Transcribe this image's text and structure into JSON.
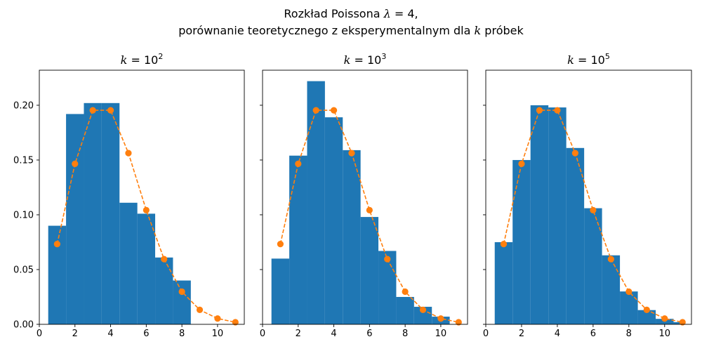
{
  "title": {
    "line1_text": "Rozkład Poissona ",
    "line1_symbol": "λ",
    "line1_rest": " = 4,",
    "line2_pre": "porównanie teoretycznego z eksperymentalnym dla ",
    "line2_symbol": "k",
    "line2_post": " próbek"
  },
  "colors": {
    "bars": "#1f77b4",
    "theoretical_line": "#ff7f0e",
    "axes": "#000000",
    "background": "#ffffff"
  },
  "chart_data": [
    {
      "type": "bar",
      "title": {
        "var": "k",
        "eq": " = 10",
        "exp": "2"
      },
      "xlim": [
        0,
        11.5
      ],
      "ylim": [
        0,
        0.232
      ],
      "xticks": [
        0,
        2,
        4,
        6,
        8,
        10
      ],
      "yticks": [
        0.0,
        0.05,
        0.1,
        0.15,
        0.2
      ],
      "ytick_labels": [
        "0.00",
        "0.05",
        "0.10",
        "0.15",
        "0.20"
      ],
      "show_ytick_labels": true,
      "bins": [
        [
          0.5,
          1.5
        ],
        [
          1.5,
          2.5
        ],
        [
          2.5,
          3.5
        ],
        [
          3.5,
          4.5
        ],
        [
          4.5,
          5.5
        ],
        [
          5.5,
          6.5
        ],
        [
          6.5,
          7.5
        ],
        [
          7.5,
          8.5
        ]
      ],
      "values": [
        0.09,
        0.192,
        0.202,
        0.202,
        0.111,
        0.101,
        0.061,
        0.04
      ],
      "theoretical": {
        "x": [
          1,
          2,
          3,
          4,
          5,
          6,
          7,
          8,
          9,
          10,
          11
        ],
        "y": [
          0.0733,
          0.1465,
          0.1954,
          0.1954,
          0.1563,
          0.1042,
          0.0595,
          0.0298,
          0.0132,
          0.0053,
          0.0019
        ]
      }
    },
    {
      "type": "bar",
      "title": {
        "var": "k",
        "eq": " = 10",
        "exp": "3"
      },
      "xlim": [
        0,
        11.5
      ],
      "ylim": [
        0,
        0.232
      ],
      "xticks": [
        0,
        2,
        4,
        6,
        8,
        10
      ],
      "yticks": [
        0.0,
        0.05,
        0.1,
        0.15,
        0.2
      ],
      "ytick_labels": [
        "0.00",
        "0.05",
        "0.10",
        "0.15",
        "0.20"
      ],
      "show_ytick_labels": false,
      "bins": [
        [
          0.5,
          1.5
        ],
        [
          1.5,
          2.5
        ],
        [
          2.5,
          3.5
        ],
        [
          3.5,
          4.5
        ],
        [
          4.5,
          5.5
        ],
        [
          5.5,
          6.5
        ],
        [
          6.5,
          7.5
        ],
        [
          7.5,
          8.5
        ],
        [
          8.5,
          9.5
        ],
        [
          9.5,
          10.5
        ]
      ],
      "values": [
        0.06,
        0.154,
        0.222,
        0.189,
        0.159,
        0.098,
        0.067,
        0.025,
        0.016,
        0.007
      ],
      "theoretical": {
        "x": [
          1,
          2,
          3,
          4,
          5,
          6,
          7,
          8,
          9,
          10,
          11
        ],
        "y": [
          0.0733,
          0.1465,
          0.1954,
          0.1954,
          0.1563,
          0.1042,
          0.0595,
          0.0298,
          0.0132,
          0.0053,
          0.0019
        ]
      }
    },
    {
      "type": "bar",
      "title": {
        "var": "k",
        "eq": " = 10",
        "exp": "5"
      },
      "xlim": [
        0,
        11.5
      ],
      "ylim": [
        0,
        0.232
      ],
      "xticks": [
        0,
        2,
        4,
        6,
        8,
        10
      ],
      "yticks": [
        0.0,
        0.05,
        0.1,
        0.15,
        0.2
      ],
      "ytick_labels": [
        "0.00",
        "0.05",
        "0.10",
        "0.15",
        "0.20"
      ],
      "show_ytick_labels": false,
      "bins": [
        [
          0.5,
          1.5
        ],
        [
          1.5,
          2.5
        ],
        [
          2.5,
          3.5
        ],
        [
          3.5,
          4.5
        ],
        [
          4.5,
          5.5
        ],
        [
          5.5,
          6.5
        ],
        [
          6.5,
          7.5
        ],
        [
          7.5,
          8.5
        ],
        [
          8.5,
          9.5
        ],
        [
          9.5,
          10.5
        ],
        [
          10.5,
          11.0
        ]
      ],
      "values": [
        0.075,
        0.15,
        0.2,
        0.198,
        0.161,
        0.106,
        0.063,
        0.03,
        0.013,
        0.005,
        0.002
      ],
      "theoretical": {
        "x": [
          1,
          2,
          3,
          4,
          5,
          6,
          7,
          8,
          9,
          10,
          11
        ],
        "y": [
          0.0733,
          0.1465,
          0.1954,
          0.1954,
          0.1563,
          0.1042,
          0.0595,
          0.0298,
          0.0132,
          0.0053,
          0.0019
        ]
      }
    }
  ]
}
